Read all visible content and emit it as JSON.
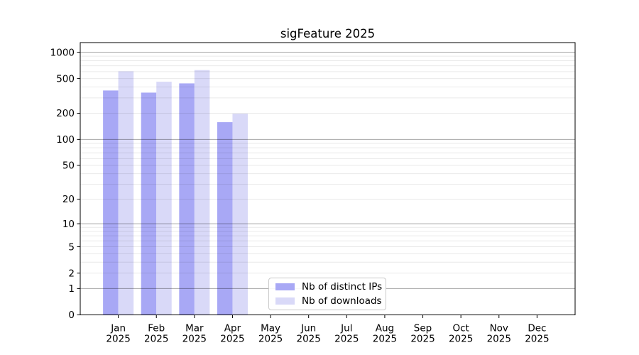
{
  "chart_data": {
    "type": "bar",
    "title": "sigFeature 2025",
    "months": [
      "Jan",
      "Feb",
      "Mar",
      "Apr",
      "May",
      "Jun",
      "Jul",
      "Aug",
      "Sep",
      "Oct",
      "Nov",
      "Dec"
    ],
    "year": "2025",
    "yscale": "log1p",
    "yticks": [
      0,
      1,
      2,
      5,
      10,
      20,
      50,
      100,
      200,
      500,
      1000
    ],
    "ylim": [
      0,
      1300
    ],
    "grid": "horizontal major (decades) + minor lines, drawn over bars",
    "legend_position": "lower center inside axes",
    "axis_color": "#000000",
    "major_grid_color": "#a6a6a6",
    "minor_grid_color": "#e9e9e9",
    "series": [
      {
        "name": "Nb of distinct IPs",
        "color": "#a8a8f5",
        "values": [
          365,
          345,
          440,
          158,
          null,
          null,
          null,
          null,
          null,
          null,
          null,
          null
        ]
      },
      {
        "name": "Nb of downloads",
        "color": "#d9d9f8",
        "values": [
          605,
          460,
          625,
          198,
          null,
          null,
          null,
          null,
          null,
          null,
          null,
          null
        ]
      }
    ]
  }
}
